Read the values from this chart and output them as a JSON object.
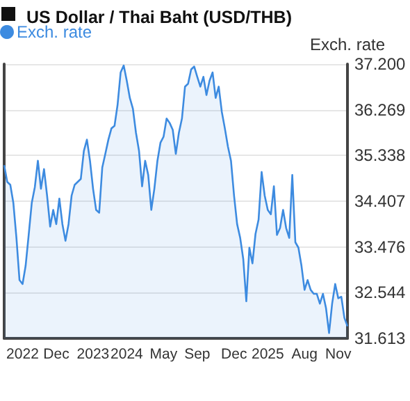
{
  "chart_data": {
    "type": "area",
    "title": "US Dollar / Thai Baht (USD/THB)",
    "ylabel": "Exch. rate",
    "legend": "top left",
    "grid": "y",
    "marker": "none",
    "line_style": "solid",
    "categories": [
      null,
      null,
      null,
      null,
      null,
      null,
      "2022",
      null,
      null,
      null,
      null,
      null,
      null,
      null,
      null,
      null,
      null,
      "Dec",
      null,
      null,
      null,
      null,
      null,
      null,
      null,
      null,
      null,
      null,
      null,
      "2023",
      null,
      null,
      null,
      null,
      null,
      null,
      null,
      null,
      null,
      null,
      "2024",
      null,
      null,
      null,
      null,
      null,
      null,
      null,
      null,
      null,
      null,
      null,
      "May",
      null,
      null,
      null,
      null,
      null,
      null,
      null,
      null,
      null,
      null,
      "Sep",
      null,
      null,
      null,
      null,
      null,
      null,
      null,
      null,
      null,
      null,
      null,
      "Dec",
      null,
      null,
      null,
      null,
      null,
      null,
      null,
      null,
      null,
      null,
      "2025",
      null,
      null,
      null,
      null,
      null,
      null,
      null,
      null,
      null,
      null,
      null,
      "Aug",
      null,
      null,
      null,
      null,
      null,
      null,
      null,
      null,
      null,
      null,
      "Nov",
      null,
      null,
      null
    ],
    "series": [
      {
        "name": "Exch. rate",
        "color": "#3d8be0",
        "values": [
          35.14,
          34.8,
          34.74,
          34.37,
          33.66,
          32.8,
          32.72,
          33.09,
          33.72,
          34.37,
          34.69,
          35.23,
          34.66,
          35.06,
          34.52,
          33.89,
          34.23,
          33.94,
          34.46,
          33.94,
          33.6,
          33.94,
          34.52,
          34.74,
          34.8,
          34.86,
          35.43,
          35.66,
          35.23,
          34.66,
          34.23,
          34.17,
          35.09,
          35.37,
          35.66,
          35.89,
          35.94,
          36.37,
          37.03,
          37.17,
          36.86,
          36.51,
          36.29,
          35.8,
          35.43,
          34.71,
          35.23,
          34.94,
          34.23,
          34.66,
          35.23,
          35.6,
          35.72,
          36.09,
          36.0,
          35.86,
          35.37,
          35.8,
          36.09,
          36.74,
          36.8,
          37.09,
          37.15,
          36.94,
          36.74,
          36.94,
          36.57,
          36.86,
          37.03,
          36.51,
          36.74,
          36.23,
          35.89,
          35.52,
          35.23,
          34.52,
          33.94,
          33.66,
          33.23,
          32.37,
          33.46,
          33.14,
          33.74,
          34.03,
          35.0,
          34.52,
          34.23,
          34.14,
          34.71,
          33.72,
          33.86,
          34.23,
          33.86,
          33.66,
          34.94,
          33.57,
          33.46,
          33.09,
          32.6,
          32.8,
          32.6,
          32.52,
          32.52,
          32.32,
          32.52,
          32.23,
          31.72,
          32.32,
          32.72,
          32.43,
          32.46,
          32.03,
          31.86
        ]
      }
    ],
    "ylim": [
      31.613,
      37.2
    ],
    "yticks": [
      {
        "value": 31.613,
        "label": "31.613"
      },
      {
        "value": 32.544,
        "label": "32.544"
      },
      {
        "value": 33.476,
        "label": "33.476"
      },
      {
        "value": 34.407,
        "label": "34.407"
      },
      {
        "value": 35.338,
        "label": "35.338"
      },
      {
        "value": 36.269,
        "label": "36.269"
      },
      {
        "value": 37.2,
        "label": "37.200"
      }
    ]
  }
}
